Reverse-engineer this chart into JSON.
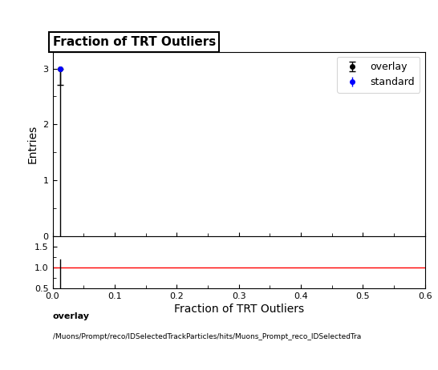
{
  "title": "Fraction of TRT Outliers",
  "title_fontsize": 11,
  "ylabel_main": "Entries",
  "xlabel": "Fraction of TRT Outliers",
  "xlim": [
    0,
    0.6
  ],
  "ylim_main": [
    0,
    3.3
  ],
  "ylim_ratio": [
    0.5,
    1.75
  ],
  "yticks_main": [
    0,
    1,
    2,
    3
  ],
  "yticks_ratio": [
    0.5,
    1.0,
    1.5
  ],
  "overlay_x": [
    0.0125
  ],
  "overlay_y": [
    3.0
  ],
  "overlay_color": "#000000",
  "overlay_label": "overlay",
  "standard_x": [
    0.0125
  ],
  "standard_y": [
    3.0
  ],
  "standard_color": "#0000ff",
  "standard_label": "standard",
  "ratio_line_y": 1.0,
  "ratio_line_color": "#ff0000",
  "bottom_label_line1": "overlay",
  "bottom_label_line2": "/Muons/Prompt/reco/IDSelectedTrackParticles/hits/Muons_Prompt_reco_IDSelectedTra",
  "background_color": "#ffffff",
  "legend_fontsize": 9,
  "tick_labelsize": 8,
  "axis_labelsize": 10
}
